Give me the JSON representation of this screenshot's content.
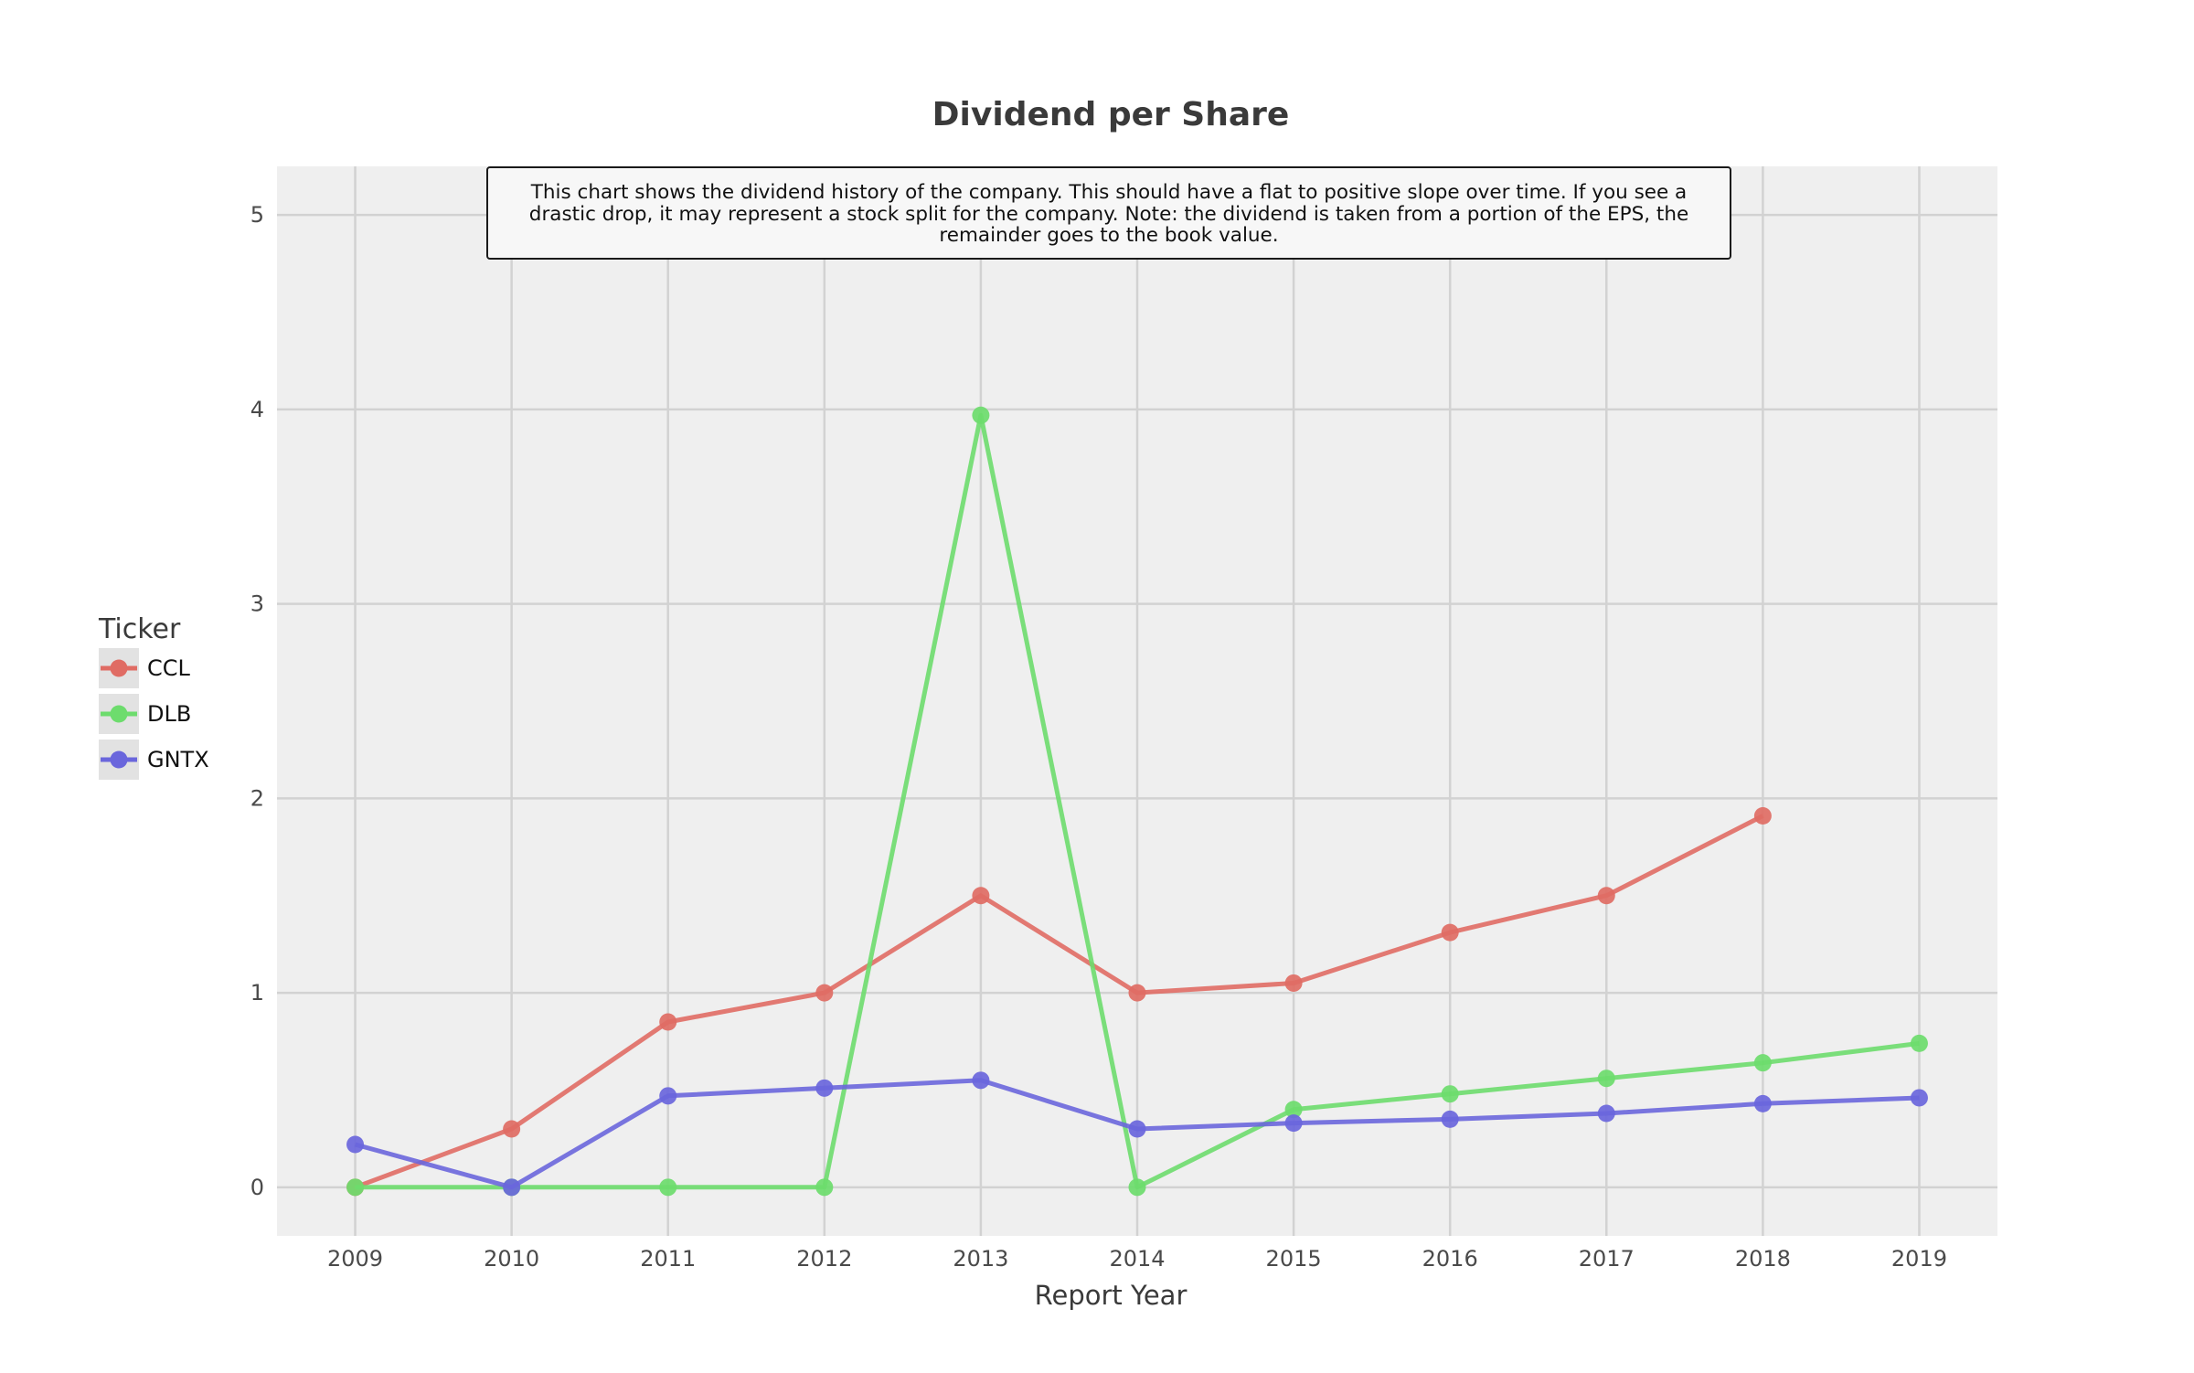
{
  "chart_data": {
    "type": "line",
    "title": "Dividend per Share",
    "xlabel": "Report Year",
    "ylabel": "",
    "x": [
      2009,
      2010,
      2011,
      2012,
      2013,
      2014,
      2015,
      2016,
      2017,
      2018,
      2019
    ],
    "x_tick_labels": [
      "2009",
      "2010",
      "2011",
      "2012",
      "2013",
      "2014",
      "2015",
      "2016",
      "2017",
      "2018",
      "2019"
    ],
    "y_ticks": [
      0,
      1,
      2,
      3,
      4,
      5
    ],
    "y_tick_labels": [
      "0",
      "1",
      "2",
      "3",
      "4",
      "5"
    ],
    "ylim": [
      -0.25,
      5.25
    ],
    "xlim": [
      2008.5,
      2019.5
    ],
    "grid": true,
    "legend": {
      "title": "Ticker",
      "placement": "left"
    },
    "annotation": "This chart shows the dividend history of the company. This should have a flat to positive slope over time. If you see a drastic drop, it may represent a stock split for the company. Note: the dividend is taken from a portion of the EPS, the remainder goes to the book value.",
    "series": [
      {
        "name": "CCL",
        "color": "#e06c64",
        "x": [
          2009,
          2010,
          2011,
          2012,
          2013,
          2014,
          2015,
          2016,
          2017,
          2018
        ],
        "values": [
          0,
          0.3,
          0.85,
          1.0,
          1.5,
          1.0,
          1.05,
          1.31,
          1.5,
          1.91
        ]
      },
      {
        "name": "DLB",
        "color": "#6ddc6d",
        "x": [
          2009,
          2010,
          2011,
          2012,
          2013,
          2014,
          2015,
          2016,
          2017,
          2018,
          2019
        ],
        "values": [
          0,
          0.0,
          0.0,
          0.0,
          3.97,
          0.0,
          0.4,
          0.48,
          0.56,
          0.64,
          0.74
        ]
      },
      {
        "name": "GNTX",
        "color": "#6a66dc",
        "x": [
          2009,
          2010,
          2011,
          2012,
          2013,
          2014,
          2015,
          2016,
          2017,
          2018,
          2019
        ],
        "values": [
          0.22,
          0.0,
          0.47,
          0.51,
          0.55,
          0.3,
          0.33,
          0.35,
          0.38,
          0.43,
          0.46
        ]
      }
    ]
  }
}
